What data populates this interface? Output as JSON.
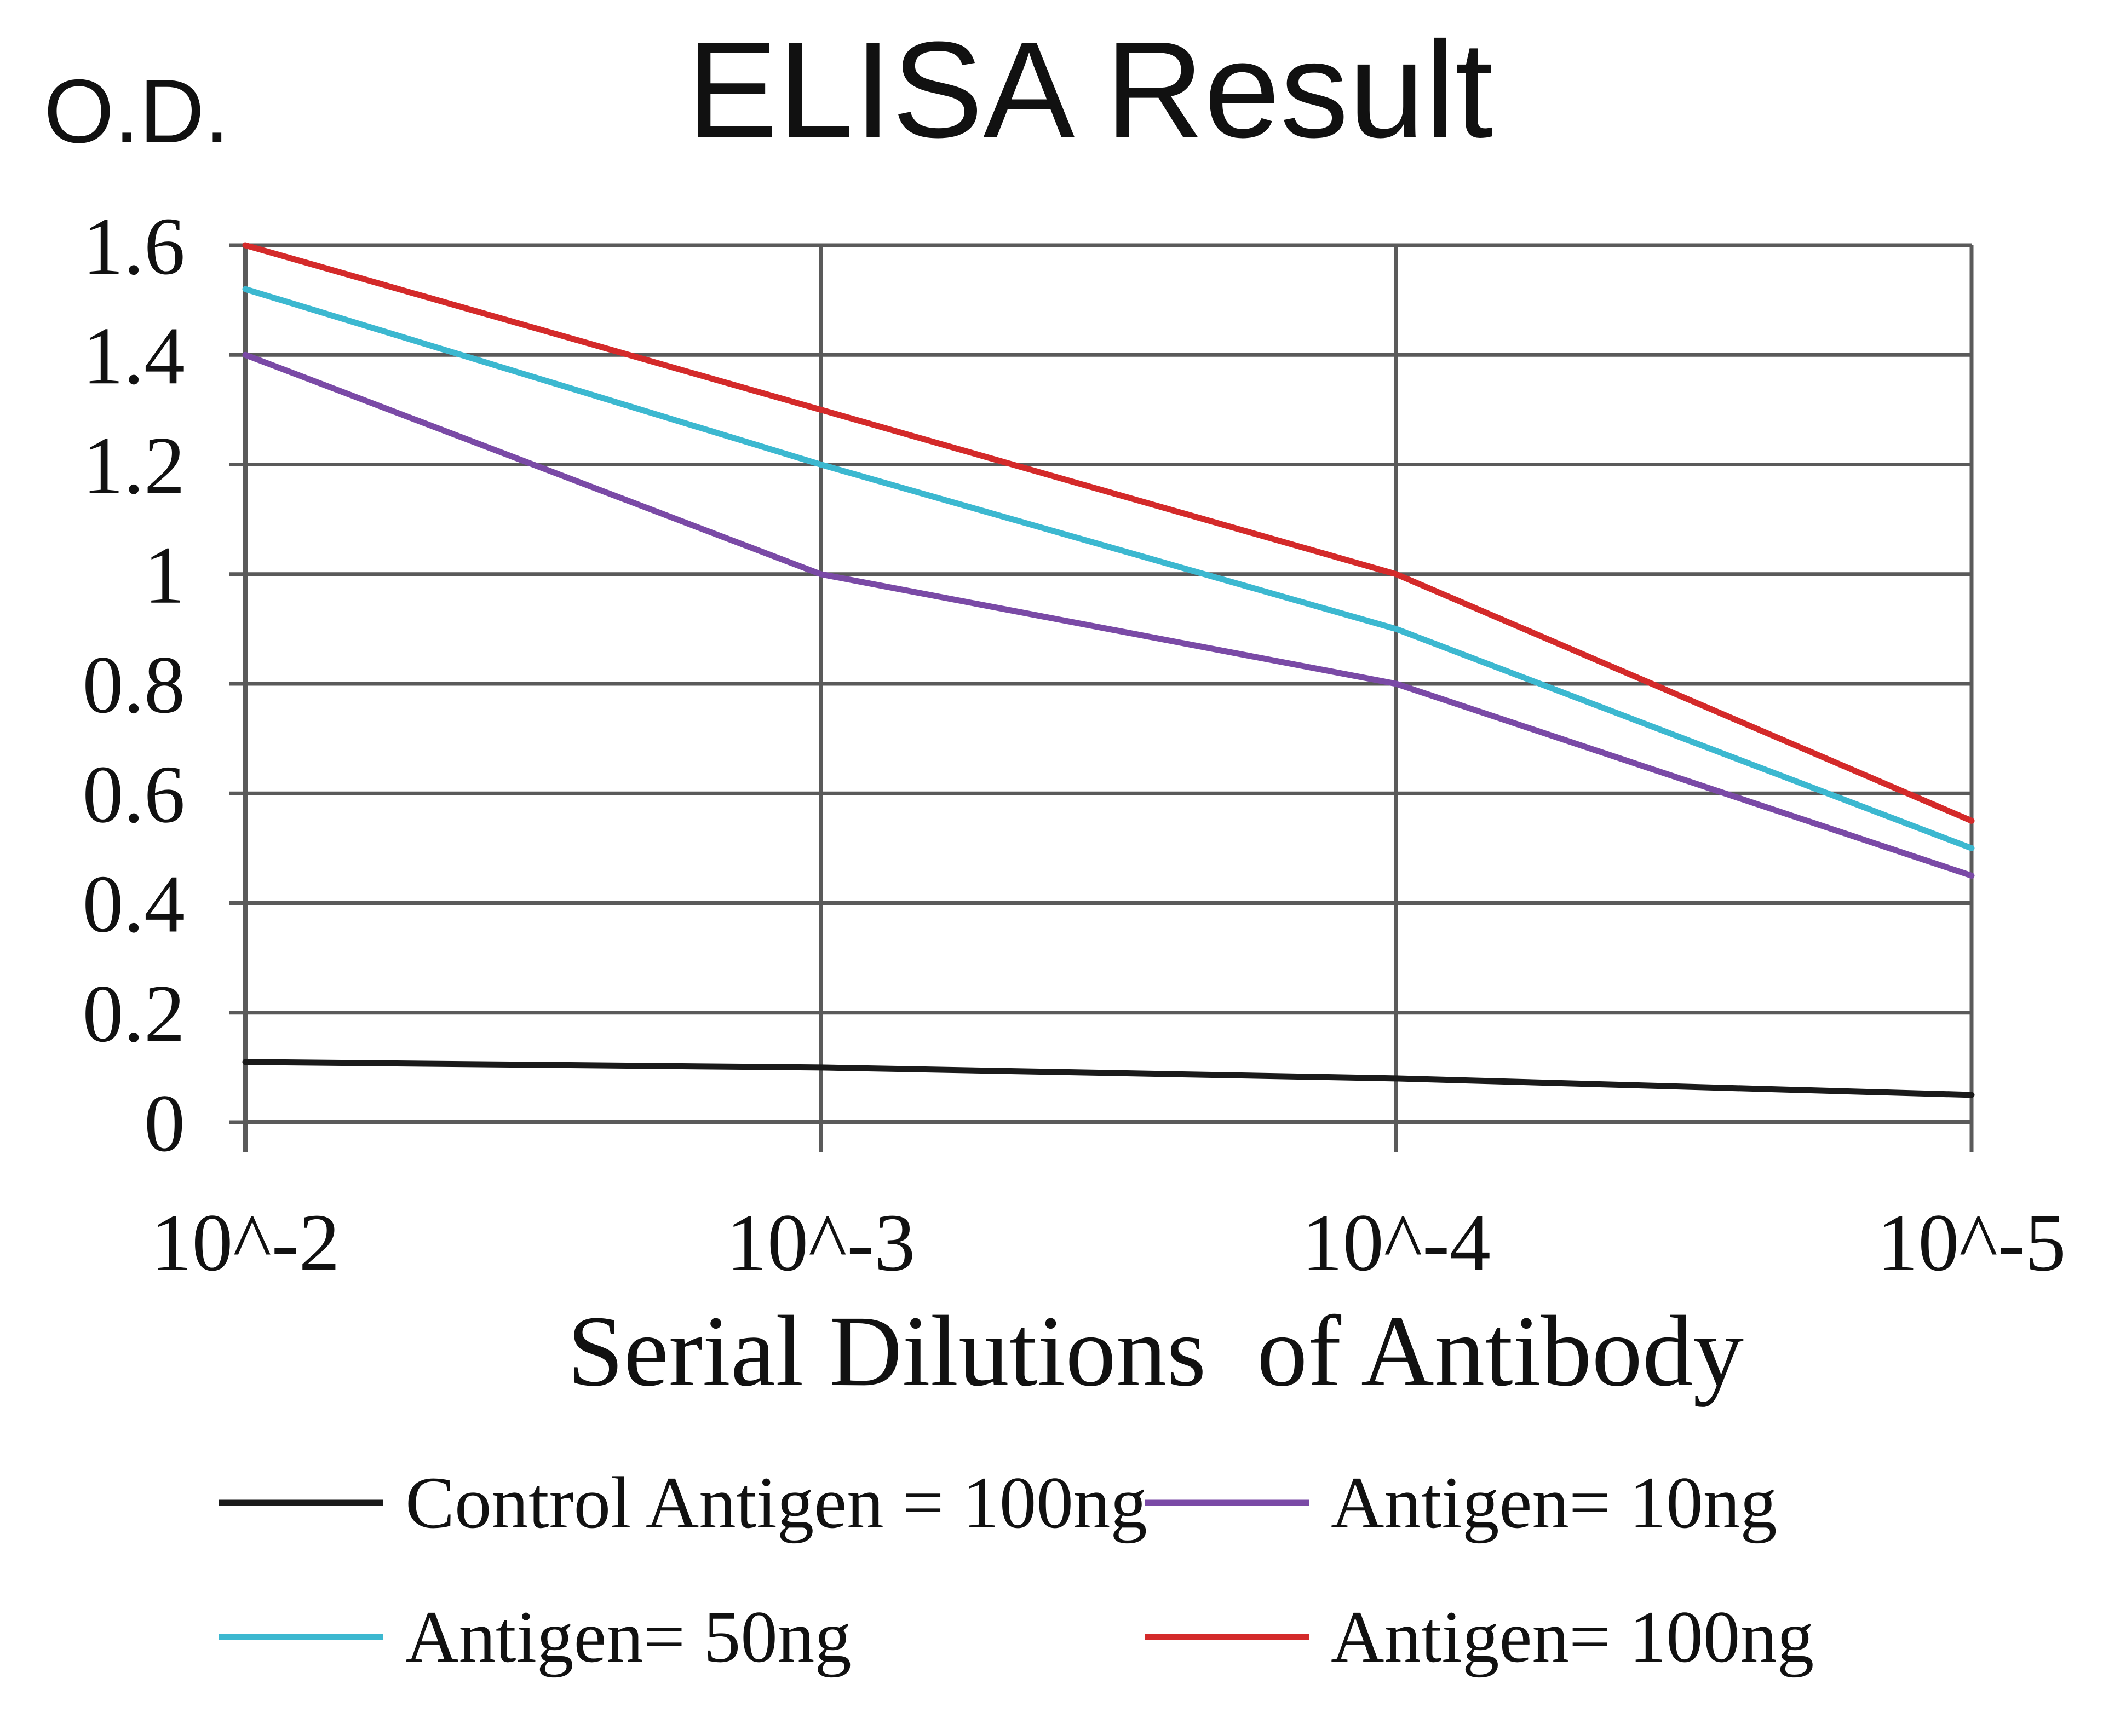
{
  "chart_data": {
    "type": "line",
    "title": "ELISA Result",
    "ylabel": "O.D.",
    "xlabel": "Serial Dilutions  of Antibody",
    "categories": [
      "10^-2",
      "10^-3",
      "10^-4",
      "10^-5"
    ],
    "ylim": [
      0,
      1.6
    ],
    "yticks": [
      "0",
      "0.2",
      "0.4",
      "0.6",
      "0.8",
      "1",
      "1.2",
      "1.4",
      "1.6"
    ],
    "grid": true,
    "legend_position": "bottom",
    "series": [
      {
        "name": "Control Antigen = 100ng",
        "color": "#1a1a1a",
        "values": [
          0.11,
          0.1,
          0.08,
          0.05
        ]
      },
      {
        "name": "Antigen= 10ng",
        "color": "#7a4aa6",
        "values": [
          1.4,
          1.0,
          0.8,
          0.45
        ]
      },
      {
        "name": "Antigen= 50ng",
        "color": "#3cb8d0",
        "values": [
          1.52,
          1.2,
          0.9,
          0.5
        ]
      },
      {
        "name": "Antigen= 100ng",
        "color": "#d42a2a",
        "values": [
          1.6,
          1.3,
          1.0,
          0.55
        ]
      }
    ]
  }
}
